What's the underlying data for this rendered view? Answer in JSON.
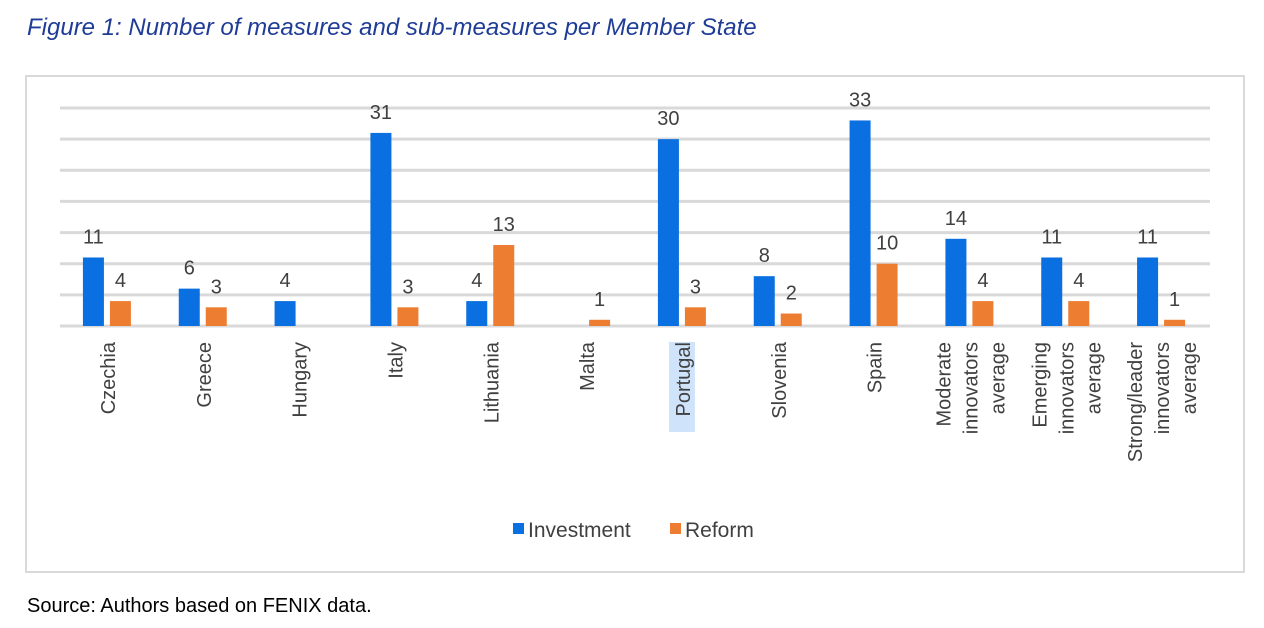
{
  "title": "Figure 1: Number of measures and sub-measures per Member State",
  "source": "Source: Authors based on FENIX data.",
  "chart_data": {
    "type": "bar",
    "title": "Figure 1: Number of measures and sub-measures per Member State",
    "xlabel": "",
    "ylabel": "",
    "ylim": [
      0,
      35
    ],
    "grid": true,
    "legend_position": "bottom",
    "categories": [
      [
        "Czechia"
      ],
      [
        "Greece"
      ],
      [
        "Hungary"
      ],
      [
        "Italy"
      ],
      [
        "Lithuania"
      ],
      [
        "Malta"
      ],
      [
        "Portugal"
      ],
      [
        "Slovenia"
      ],
      [
        "Spain"
      ],
      [
        "Moderate",
        "innovators",
        "average"
      ],
      [
        "Emerging",
        "innovators",
        "average"
      ],
      [
        "Strong/leader",
        "innovators",
        "average"
      ]
    ],
    "series": [
      {
        "name": "Investment",
        "color": "#0a6fe0",
        "values": [
          11,
          6,
          4,
          31,
          4,
          null,
          30,
          8,
          33,
          14,
          11,
          11
        ]
      },
      {
        "name": "Reform",
        "color": "#ed7d31",
        "values": [
          4,
          3,
          null,
          3,
          13,
          1,
          3,
          2,
          10,
          4,
          4,
          1
        ]
      }
    ],
    "highlighted_category": "Portugal"
  }
}
